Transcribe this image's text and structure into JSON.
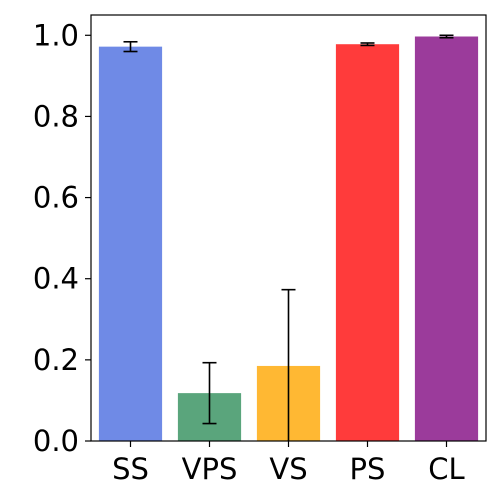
{
  "chart_data": {
    "type": "bar",
    "title": "",
    "xlabel": "",
    "ylabel": "",
    "categories": [
      "SS",
      "VPS",
      "VS",
      "PS",
      "CL"
    ],
    "values": [
      0.972,
      0.118,
      0.185,
      0.978,
      0.997
    ],
    "error": [
      0.012,
      0.075,
      0.188,
      0.003,
      0.003
    ],
    "colors": [
      "#6f8ae6",
      "#5aa57c",
      "#ffb833",
      "#ff3b3b",
      "#9b3b9b"
    ],
    "ylim": [
      0,
      1.05
    ],
    "yticks": [
      "0.0",
      "0.2",
      "0.4",
      "0.6",
      "0.8",
      "1.0"
    ],
    "grid": false,
    "legend": "none"
  }
}
